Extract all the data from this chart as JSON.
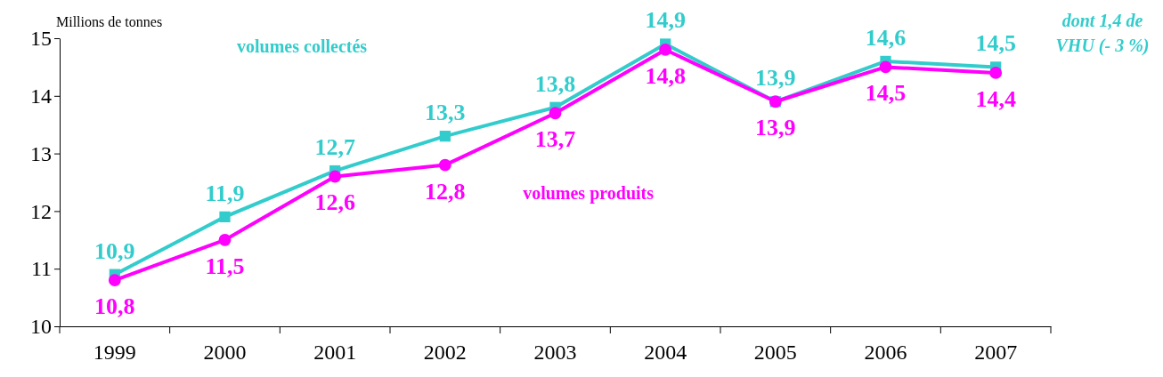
{
  "chart_data": {
    "type": "line",
    "ylabel": "Millions de tonnes",
    "categories": [
      "1999",
      "2000",
      "2001",
      "2002",
      "2003",
      "2004",
      "2005",
      "2006",
      "2007"
    ],
    "ylim": [
      10,
      15
    ],
    "yticks": [
      10,
      11,
      12,
      13,
      14,
      15
    ],
    "grid": false,
    "line_style": "solid",
    "series": [
      {
        "name": "volumes collectés",
        "color": "#33cccc",
        "marker": "square",
        "values": [
          10.9,
          11.9,
          12.7,
          13.3,
          13.8,
          14.9,
          13.9,
          14.6,
          14.5
        ],
        "value_labels": [
          "10,9",
          "11,9",
          "12,7",
          "13,3",
          "13,8",
          "14,9",
          "13,9",
          "14,6",
          "14,5"
        ]
      },
      {
        "name": "volumes produits",
        "color": "#ff00ff",
        "marker": "circle",
        "values": [
          10.8,
          11.5,
          12.6,
          12.8,
          13.7,
          14.8,
          13.9,
          14.5,
          14.4
        ],
        "value_labels": [
          "10,8",
          "11,5",
          "12,6",
          "12,8",
          "13,7",
          "14,8",
          "13,9",
          "14,5",
          "14,4"
        ]
      }
    ],
    "annotations": [
      "dont 1,4 de VHU (- 3 %)"
    ]
  }
}
